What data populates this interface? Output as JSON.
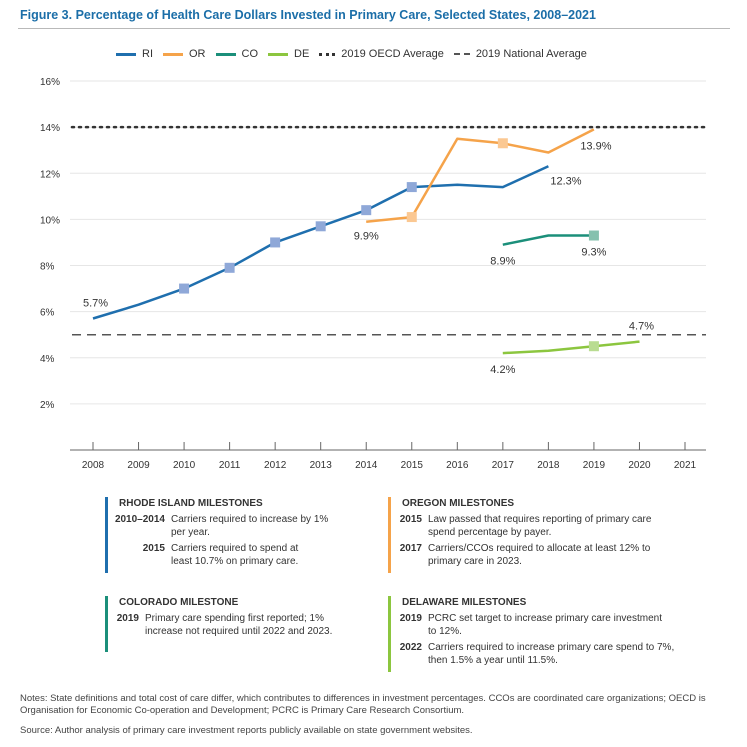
{
  "title": "Figure 3. Percentage of Health Care Dollars Invested in Primary Care, Selected States, 2008–2021",
  "legend": {
    "ri": "RI",
    "or": "OR",
    "co": "CO",
    "de": "DE",
    "oecd": "2019 OECD Average",
    "national": "2019 National Average"
  },
  "colors": {
    "ri": "#1f6fae",
    "or": "#f5a34a",
    "co": "#1b8f7a",
    "de": "#8cc63f",
    "ri_marker": "#8fa8d8",
    "or_marker": "#fbc892",
    "co_marker": "#86c1ae",
    "de_marker": "#b9dc91",
    "title": "#1b6ea8"
  },
  "chart_data": {
    "type": "line",
    "x": [
      2008,
      2009,
      2010,
      2011,
      2012,
      2013,
      2014,
      2015,
      2016,
      2017,
      2018,
      2019,
      2020,
      2021
    ],
    "y_ticks": [
      "2%",
      "4%",
      "6%",
      "8%",
      "10%",
      "12%",
      "14%",
      "16%"
    ],
    "ylim": [
      0,
      16
    ],
    "series": [
      {
        "name": "RI",
        "x": [
          2008,
          2009,
          2010,
          2011,
          2012,
          2013,
          2014,
          2015,
          2016,
          2017,
          2018
        ],
        "values": [
          5.7,
          6.3,
          7.0,
          7.9,
          9.0,
          9.7,
          10.4,
          11.4,
          11.5,
          11.4,
          12.3
        ],
        "markers": [
          2010,
          2011,
          2012,
          2013,
          2014,
          2015
        ]
      },
      {
        "name": "OR",
        "x": [
          2014,
          2015,
          2016,
          2017,
          2018,
          2019
        ],
        "values": [
          9.9,
          10.1,
          13.5,
          13.3,
          12.9,
          13.9
        ],
        "markers": [
          2015,
          2017
        ]
      },
      {
        "name": "CO",
        "x": [
          2017,
          2018,
          2019
        ],
        "values": [
          8.9,
          9.3,
          9.3
        ],
        "markers": [
          2019
        ]
      },
      {
        "name": "DE",
        "x": [
          2017,
          2018,
          2019,
          2020
        ],
        "values": [
          4.2,
          4.3,
          4.5,
          4.7
        ],
        "markers": [
          2019
        ]
      }
    ],
    "reference_lines": [
      {
        "name": "2019 OECD Average",
        "value": 14.0,
        "style": "dotted"
      },
      {
        "name": "2019 National Average",
        "value": 5.0,
        "style": "dashed"
      }
    ],
    "annotations": [
      {
        "text": "5.7%",
        "x": 2008,
        "y": 5.7
      },
      {
        "text": "9.9%",
        "x": 2014,
        "y": 9.9
      },
      {
        "text": "12.3%",
        "x": 2018,
        "y": 12.3
      },
      {
        "text": "13.9%",
        "x": 2019,
        "y": 13.9
      },
      {
        "text": "8.9%",
        "x": 2017,
        "y": 8.9
      },
      {
        "text": "9.3%",
        "x": 2019,
        "y": 9.3
      },
      {
        "text": "4.2%",
        "x": 2017,
        "y": 4.2
      },
      {
        "text": "4.7%",
        "x": 2020,
        "y": 4.7
      }
    ]
  },
  "milestones": {
    "ri": {
      "heading": "RHODE ISLAND MILESTONES",
      "items": [
        {
          "year": "2010–2014",
          "text": "Carriers required to increase by 1% per year."
        },
        {
          "year": "2015",
          "text": "Carriers required to spend at least 10.7% on primary care."
        }
      ]
    },
    "or": {
      "heading": "OREGON MILESTONES",
      "items": [
        {
          "year": "2015",
          "text": "Law passed that requires reporting of primary care spend percentage by payer."
        },
        {
          "year": "2017",
          "text": "Carriers/CCOs required to allocate at least 12% to primary care in 2023."
        }
      ]
    },
    "co": {
      "heading": "COLORADO MILESTONE",
      "items": [
        {
          "year": "2019",
          "text": "Primary care spending first reported; 1% increase not required until 2022 and 2023."
        }
      ]
    },
    "de": {
      "heading": "DELAWARE MILESTONES",
      "items": [
        {
          "year": "2019",
          "text": "PCRC set target to increase primary care investment to 12%."
        },
        {
          "year": "2022",
          "text": "Carriers required to increase primary care spend to 7%, then 1.5% a year until 11.5%."
        }
      ]
    }
  },
  "notes": "Notes: State definitions and total cost of care differ, which contributes to differences in investment percentages. CCOs are coordinated care organizations; OECD is Organisation for Economic Co-operation and Development; PCRC is Primary Care Research Consortium.",
  "source": "Source: Author analysis of primary care investment reports publicly available on state government websites."
}
